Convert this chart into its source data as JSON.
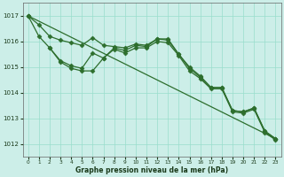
{
  "background_color": "#cceee8",
  "grid_color": "#99ddcc",
  "line_color": "#2d6e2d",
  "xlabel": "Graphe pression niveau de la mer (hPa)",
  "xlim": [
    -0.5,
    23.5
  ],
  "ylim": [
    1011.5,
    1017.5
  ],
  "yticks": [
    1012,
    1013,
    1014,
    1015,
    1016,
    1017
  ],
  "xticks": [
    0,
    1,
    2,
    3,
    4,
    5,
    6,
    7,
    8,
    9,
    10,
    11,
    12,
    13,
    14,
    15,
    16,
    17,
    18,
    19,
    20,
    21,
    22,
    23
  ],
  "line1_x": [
    0,
    1,
    2,
    3,
    4,
    5,
    6,
    7,
    8,
    9,
    10,
    11,
    12,
    13,
    14,
    15,
    16,
    17,
    18,
    19,
    20,
    21,
    22,
    23
  ],
  "line1_y": [
    1017.0,
    1016.65,
    1016.2,
    1016.05,
    1015.95,
    1015.85,
    1016.15,
    1015.85,
    1015.8,
    1015.75,
    1015.9,
    1015.85,
    1016.1,
    1016.1,
    1015.5,
    1015.0,
    1014.65,
    1014.2,
    1014.2,
    1013.3,
    1013.25,
    1013.4,
    1012.5,
    1012.2
  ],
  "line2_x": [
    0,
    1,
    2,
    3,
    4,
    5,
    6,
    7,
    8,
    9,
    10,
    11,
    12,
    13,
    14,
    15,
    16,
    17,
    18,
    19,
    20,
    21,
    22,
    23
  ],
  "line2_y": [
    1017.0,
    1016.2,
    1015.75,
    1015.25,
    1015.05,
    1014.95,
    1015.55,
    1015.35,
    1015.75,
    1015.65,
    1015.85,
    1015.8,
    1016.1,
    1016.05,
    1015.5,
    1014.95,
    1014.6,
    1014.2,
    1014.2,
    1013.3,
    1013.25,
    1013.4,
    1012.5,
    1012.2
  ],
  "line3_x": [
    2,
    3,
    4,
    5,
    6,
    7,
    8,
    9,
    10,
    11,
    12,
    13,
    14,
    15,
    16,
    17,
    18,
    19,
    20,
    21,
    22,
    23
  ],
  "line3_y": [
    1015.75,
    1015.2,
    1014.95,
    1014.85,
    1014.85,
    1015.35,
    1015.7,
    1015.55,
    1015.75,
    1015.75,
    1016.0,
    1015.95,
    1015.45,
    1014.85,
    1014.55,
    1014.15,
    1014.15,
    1013.25,
    1013.2,
    1013.35,
    1012.45,
    1012.15
  ],
  "line4_x": [
    0,
    23
  ],
  "line4_y": [
    1017.0,
    1012.2
  ]
}
